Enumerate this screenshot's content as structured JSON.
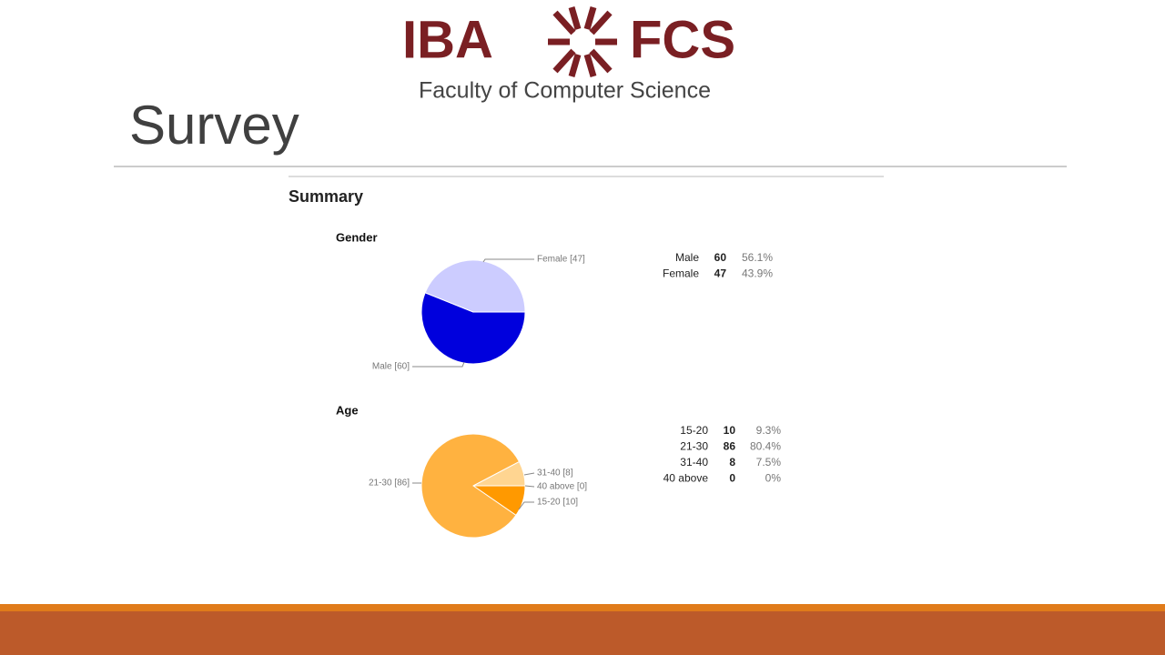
{
  "logo": {
    "left": "IBA",
    "right": "FCS",
    "subtitle": "Faculty of Computer Science"
  },
  "title": "Survey",
  "heading": "Summary",
  "chart_data": [
    {
      "type": "pie",
      "title": "Gender",
      "categories": [
        "Male",
        "Female"
      ],
      "values": [
        60,
        47
      ],
      "slice_labels": [
        "Male [60]",
        "Female [47]"
      ],
      "percents": [
        56.1,
        43.9
      ],
      "percent_labels": [
        "56.1%",
        "43.9%"
      ],
      "colors": [
        "#0000dd",
        "#ccccff"
      ]
    },
    {
      "type": "pie",
      "title": "Age",
      "categories": [
        "15-20",
        "21-30",
        "31-40",
        "40 above"
      ],
      "values": [
        10,
        86,
        8,
        0
      ],
      "slice_labels": [
        "15-20 [10]",
        "21-30 [86]",
        "31-40 [8]",
        "40 above [0]"
      ],
      "percents": [
        9.3,
        80.4,
        7.5,
        0
      ],
      "percent_labels": [
        "9.3%",
        "80.4%",
        "7.5%",
        "0%"
      ],
      "colors": [
        "#ff9900",
        "#ffb240",
        "#ffd591",
        "#ffeecc"
      ]
    }
  ]
}
